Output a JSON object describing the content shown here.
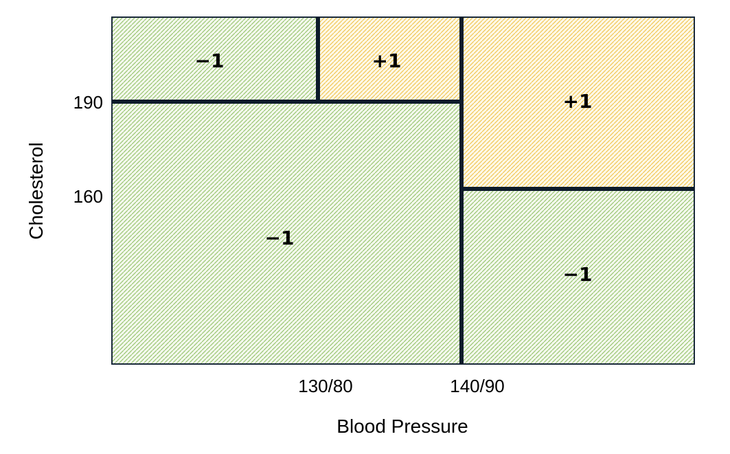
{
  "diagram": {
    "regions": [
      {
        "label": "−1",
        "class": "negative"
      },
      {
        "label": "+1",
        "class": "positive"
      },
      {
        "label": "+1",
        "class": "positive"
      },
      {
        "label": "−1",
        "class": "negative"
      },
      {
        "label": "−1",
        "class": "negative"
      }
    ],
    "y_ticks": [
      "190",
      "160"
    ],
    "x_ticks": [
      "130/80",
      "140/90"
    ],
    "y_axis_label": "Cholesterol",
    "x_axis_label": "Blood Pressure",
    "colors": {
      "negative_fill": "#f3f8ec",
      "negative_hatch": "#8fbf63",
      "positive_fill": "#fdf8e6",
      "positive_hatch": "#f0c040",
      "lines": "#0d1b2a"
    }
  }
}
